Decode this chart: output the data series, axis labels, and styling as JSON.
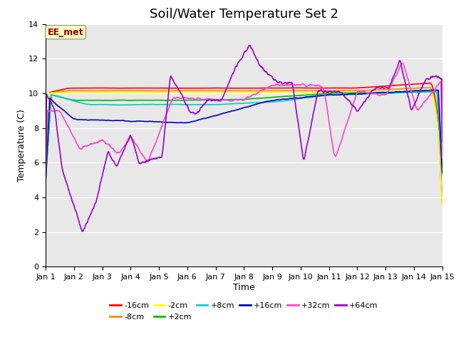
{
  "title": "Soil/Water Temperature Set 2",
  "xlabel": "Time",
  "ylabel": "Temperature (C)",
  "xlim": [
    0,
    14
  ],
  "ylim": [
    0,
    14
  ],
  "yticks": [
    0,
    2,
    4,
    6,
    8,
    10,
    12,
    14
  ],
  "xtick_labels": [
    "Jan 1",
    "Jan 2",
    "Jan 3",
    "Jan 4",
    "Jan 5",
    "Jan 6",
    "Jan 7",
    "Jan 8",
    "Jan 9",
    "Jan 10",
    "Jan 11",
    "Jan 12",
    "Jan 13",
    "Jan 14",
    "Jan 15"
  ],
  "watermark_text": "EE_met",
  "plot_bg_color": "#e8e8e8",
  "fig_bg_color": "#ffffff",
  "series": [
    {
      "label": "-16cm",
      "color": "#ff0000"
    },
    {
      "label": "-8cm",
      "color": "#ff8800"
    },
    {
      "label": "-2cm",
      "color": "#ffff00"
    },
    {
      "label": "+2cm",
      "color": "#00bb00"
    },
    {
      "label": "+8cm",
      "color": "#00cccc"
    },
    {
      "label": "+16cm",
      "color": "#0000cc"
    },
    {
      "label": "+32cm",
      "color": "#ff44cc"
    },
    {
      "label": "+64cm",
      "color": "#9900cc"
    }
  ],
  "title_fontsize": 13,
  "tick_fontsize": 8,
  "label_fontsize": 9,
  "legend_fontsize": 8
}
